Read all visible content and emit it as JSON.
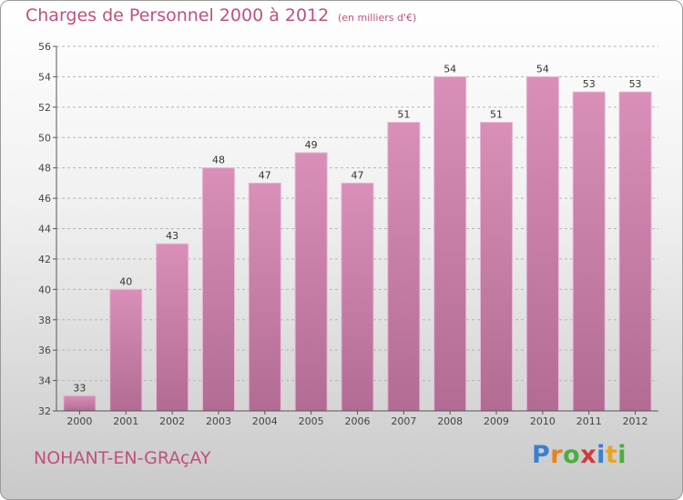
{
  "chart_data": {
    "type": "bar",
    "title": "Charges de Personnel 2000 à 2012",
    "subtitle": "(en milliers d'€)",
    "categories": [
      "2000",
      "2001",
      "2002",
      "2003",
      "2004",
      "2005",
      "2006",
      "2007",
      "2008",
      "2009",
      "2010",
      "2011",
      "2012"
    ],
    "values": [
      33,
      40,
      43,
      48,
      47,
      49,
      47,
      51,
      54,
      51,
      54,
      53,
      53
    ],
    "ylim": [
      32,
      56
    ],
    "yticks": [
      32,
      34,
      36,
      38,
      40,
      42,
      44,
      46,
      48,
      50,
      52,
      54,
      56
    ],
    "grid": "horizontal dashed",
    "bar_color": "#d98fb8",
    "bar_color_dark": "#b26c93"
  },
  "place_name": "NOHANT-EN-GRAçAY",
  "logo": {
    "letters": [
      "P",
      "r",
      "o",
      "x",
      "i",
      "t",
      "i"
    ],
    "colors": [
      "#3a7fd0",
      "#e8821e",
      "#4caf3c",
      "#d23a3a",
      "#3a7fd0",
      "#e8a51e",
      "#4caf3c"
    ]
  }
}
